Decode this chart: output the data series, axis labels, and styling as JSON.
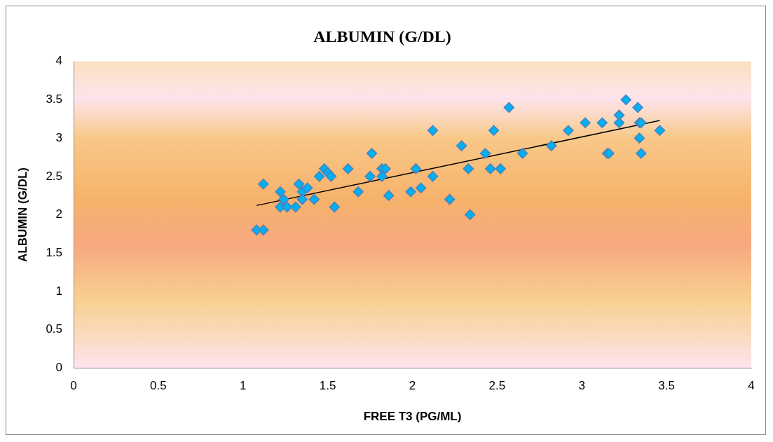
{
  "chart_data": {
    "type": "scatter",
    "title": "ALBUMIN (G/DL)",
    "xlabel": "FREE T3 (PG/ML)",
    "ylabel": "ALBUMIN (G/DL)",
    "marker": "diamond",
    "grid": false,
    "legend": false,
    "xlim": [
      0,
      4
    ],
    "xticks": [
      0,
      0.5,
      1,
      1.5,
      2,
      2.5,
      3,
      3.5,
      4
    ],
    "ylim": [
      0,
      4
    ],
    "yticks": [
      0,
      0.5,
      1,
      1.5,
      2,
      2.5,
      3,
      3.5,
      4
    ],
    "series": [
      {
        "color": "#00b0f0",
        "x": [
          1.08,
          1.12,
          1.12,
          1.22,
          1.22,
          1.24,
          1.26,
          1.31,
          1.33,
          1.35,
          1.35,
          1.38,
          1.42,
          1.45,
          1.48,
          1.5,
          1.52,
          1.54,
          1.62,
          1.68,
          1.75,
          1.76,
          1.82,
          1.82,
          1.84,
          1.86,
          1.99,
          2.02,
          2.05,
          2.12,
          2.12,
          2.22,
          2.29,
          2.33,
          2.34,
          2.43,
          2.46,
          2.48,
          2.52,
          2.57,
          2.65,
          2.82,
          2.92,
          3.02,
          3.12,
          3.15,
          3.16,
          3.22,
          3.22,
          3.26,
          3.33,
          3.34,
          3.34,
          3.35,
          3.35,
          3.46
        ],
        "values": [
          1.8,
          1.8,
          2.4,
          2.3,
          2.1,
          2.2,
          2.1,
          2.1,
          2.4,
          2.3,
          2.2,
          2.35,
          2.2,
          2.5,
          2.6,
          2.55,
          2.5,
          2.1,
          2.6,
          2.3,
          2.5,
          2.8,
          2.6,
          2.5,
          2.6,
          2.25,
          2.3,
          2.6,
          2.35,
          3.1,
          2.5,
          2.2,
          2.9,
          2.6,
          2.0,
          2.8,
          2.6,
          3.1,
          2.6,
          3.4,
          2.8,
          2.9,
          3.1,
          3.2,
          3.2,
          2.8,
          2.8,
          3.3,
          3.2,
          3.5,
          3.4,
          3.2,
          3.0,
          3.2,
          2.8,
          3.1
        ]
      },
      {
        "type": "line",
        "color": "#000000",
        "x": [
          1.08,
          3.46
        ],
        "values": [
          2.12,
          3.23
        ],
        "marker": "none"
      }
    ]
  }
}
